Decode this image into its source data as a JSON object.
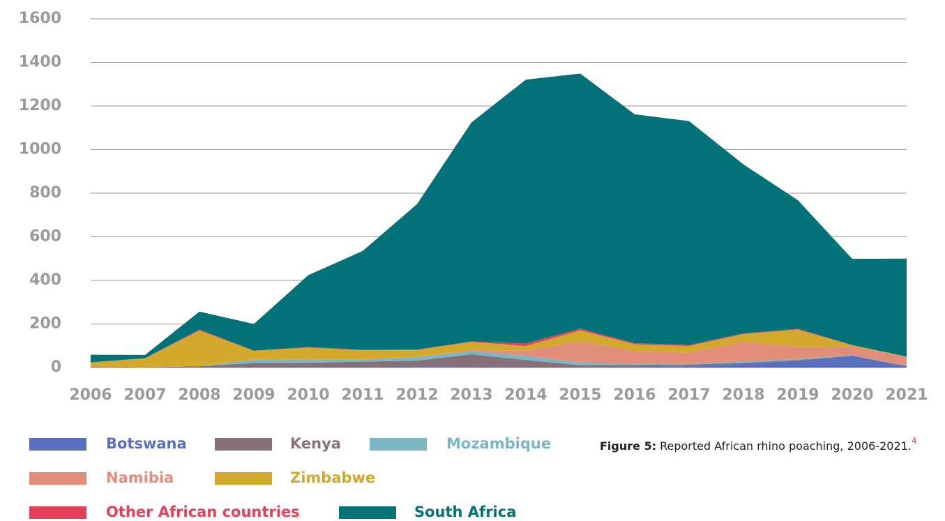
{
  "chart_data": {
    "type": "stacked-area",
    "caption_label": "Figure 5:",
    "caption_text": "Reported African rhino poaching, 2006-2021.",
    "caption_ref": "4",
    "x": [
      2006,
      2007,
      2008,
      2009,
      2010,
      2011,
      2012,
      2013,
      2014,
      2015,
      2016,
      2017,
      2018,
      2019,
      2020,
      2021
    ],
    "xlim": [
      2006,
      2021
    ],
    "xticks": [
      2006,
      2007,
      2008,
      2009,
      2010,
      2011,
      2012,
      2013,
      2014,
      2015,
      2016,
      2017,
      2018,
      2019,
      2020,
      2021
    ],
    "ylim": [
      0,
      1600
    ],
    "yticks": [
      0,
      200,
      400,
      600,
      800,
      1000,
      1200,
      1400,
      1600
    ],
    "grid": true,
    "series": [
      {
        "name": "Botswana",
        "color": "#5b6fbf",
        "values": [
          0,
          0,
          0,
          0,
          0,
          0,
          2,
          2,
          0,
          0,
          2,
          5,
          18,
          31,
          55,
          3
        ]
      },
      {
        "name": "Kenya",
        "color": "#86717a",
        "values": [
          3,
          1,
          6,
          21,
          22,
          27,
          30,
          59,
          35,
          11,
          10,
          9,
          4,
          4,
          0,
          5
        ]
      },
      {
        "name": "Mozambique",
        "color": "#7ab7c4",
        "values": [
          0,
          0,
          0,
          15,
          16,
          10,
          16,
          15,
          19,
          13,
          5,
          5,
          7,
          5,
          2,
          2
        ]
      },
      {
        "name": "Namibia",
        "color": "#e38e7a",
        "values": [
          0,
          0,
          0,
          2,
          2,
          1,
          2,
          4,
          25,
          97,
          60,
          50,
          90,
          55,
          40,
          40
        ]
      },
      {
        "name": "Zimbabwe",
        "color": "#d2a92a",
        "values": [
          21,
          42,
          164,
          39,
          52,
          42,
          31,
          38,
          20,
          50,
          30,
          30,
          35,
          80,
          5,
          0
        ]
      },
      {
        "name": "Other African countries",
        "color": "#e5405a",
        "values": [
          0,
          0,
          5,
          1,
          2,
          2,
          2,
          2,
          12,
          8,
          5,
          5,
          3,
          3,
          2,
          0
        ]
      },
      {
        "name": "South Africa",
        "color": "#007278",
        "values": [
          35,
          15,
          82,
          122,
          330,
          453,
          667,
          1005,
          1210,
          1170,
          1050,
          1027,
          775,
          590,
          395,
          450
        ]
      }
    ]
  }
}
